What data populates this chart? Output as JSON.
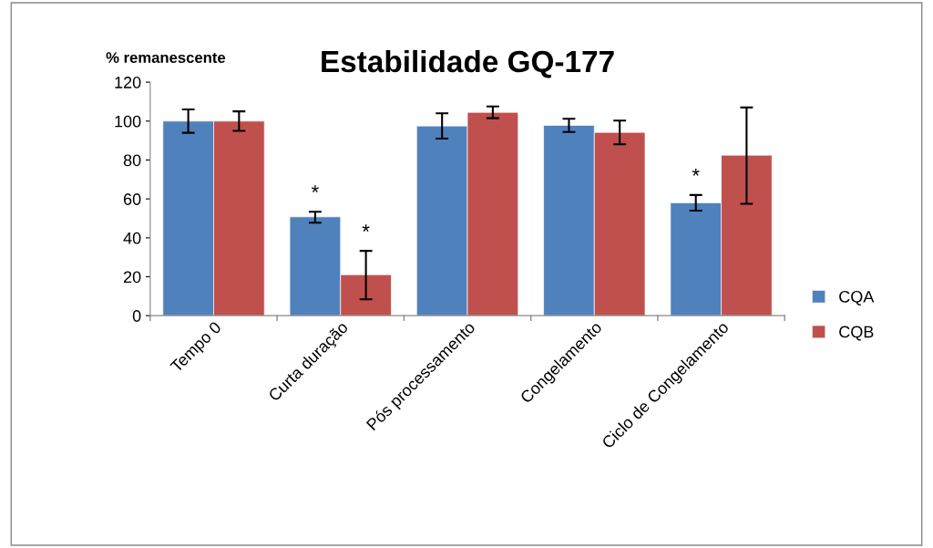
{
  "chart_data": {
    "type": "bar",
    "title": "Estabilidade GQ-177",
    "ylabel": "% remanescente",
    "categories": [
      "Tempo 0",
      "Curta duração",
      "Pós processamento",
      "Congelamento",
      "Ciclo de Congelamento"
    ],
    "series": [
      {
        "name": "CQA",
        "color": "#4f81bd",
        "values": [
          100,
          50.8,
          97.5,
          97.8,
          58
        ],
        "errors": [
          6,
          [
            47.8,
            53.4
          ],
          6.5,
          3.4,
          4
        ]
      },
      {
        "name": "CQB",
        "color": "#c0504d",
        "values": [
          100,
          21,
          104.5,
          94.2,
          82.5
        ],
        "errors": [
          5,
          [
            8.4,
            33.3
          ],
          3,
          [
            88.1,
            100.3
          ],
          [
            57.5,
            107
          ]
        ]
      }
    ],
    "ylim": [
      0,
      120
    ],
    "yticks": [
      0,
      20,
      40,
      60,
      80,
      100,
      120
    ],
    "grid": false,
    "legend": "right",
    "annotations": [
      "*",
      "*",
      "*"
    ]
  }
}
